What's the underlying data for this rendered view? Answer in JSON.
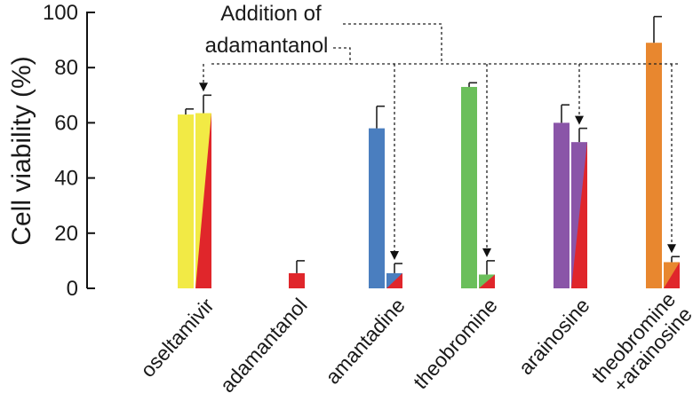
{
  "chart_data": {
    "type": "bar",
    "title": "",
    "xlabel": "",
    "ylabel": "Cell viability (%)",
    "ylim": [
      0,
      100
    ],
    "yticks": [
      0,
      20,
      40,
      60,
      80,
      100
    ],
    "grid": false,
    "categories": [
      {
        "lines": [
          "oseltamivir"
        ]
      },
      {
        "lines": [
          "adamantanol"
        ]
      },
      {
        "lines": [
          "amantadine"
        ]
      },
      {
        "lines": [
          "theobromine"
        ]
      },
      {
        "lines": [
          "arainosine"
        ]
      },
      {
        "lines": [
          "theobromine",
          "+arainosine"
        ]
      }
    ],
    "series": [
      {
        "values": [
          63,
          null,
          58,
          73,
          60,
          89
        ],
        "errors": [
          2,
          null,
          8,
          1.5,
          6.5,
          9.5
        ]
      },
      {
        "values": [
          63.5,
          5.5,
          5.5,
          5,
          53,
          9.5
        ],
        "errors": [
          6.5,
          4.5,
          3.5,
          5,
          5,
          2
        ]
      }
    ],
    "colors": {
      "oseltamivir": "#f2ea45",
      "amantadine": "#4a7ebf",
      "theobromine": "#6bbf5b",
      "arainosine": "#8a55a8",
      "combo": "#e8872f",
      "adamantanol": "#e0262b"
    },
    "annotation": {
      "lines": [
        "Addition of",
        "adamantanol"
      ],
      "arrow_targets": [
        0,
        2,
        3,
        4,
        5
      ]
    }
  }
}
